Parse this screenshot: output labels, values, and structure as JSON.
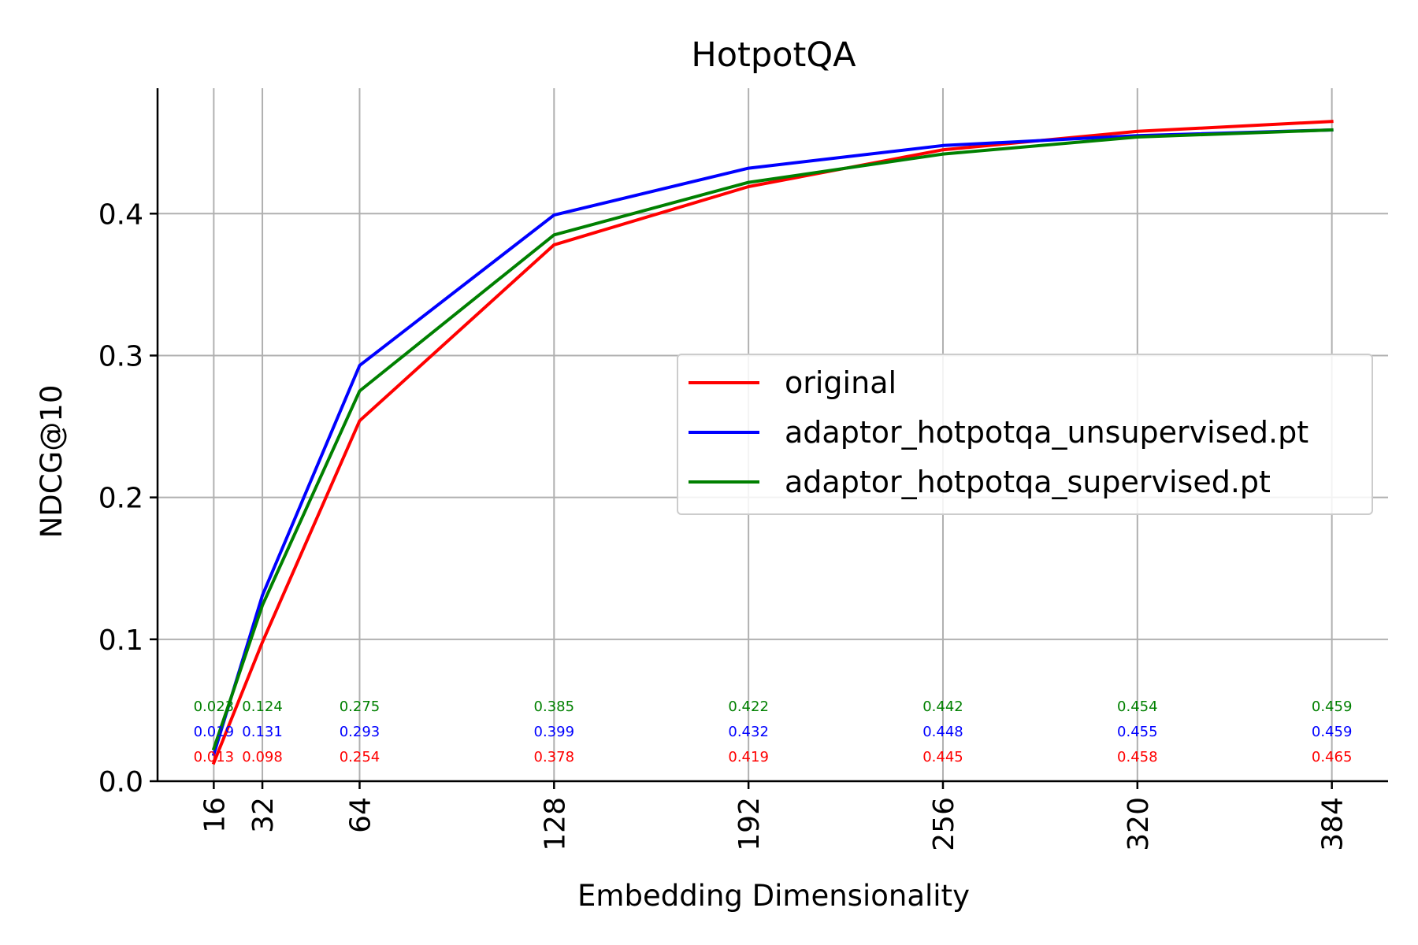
{
  "chart_data": {
    "type": "line",
    "title": "HotpotQA",
    "xlabel": "Embedding Dimensionality",
    "ylabel": "NDCG@10",
    "x": [
      16,
      32,
      64,
      128,
      192,
      256,
      320,
      384
    ],
    "x_tick_labels": [
      "16",
      "32",
      "64",
      "128",
      "192",
      "256",
      "320",
      "384"
    ],
    "xlim": [
      -2.5,
      402.5
    ],
    "ylim": [
      0,
      0.4884
    ],
    "y_ticks": [
      0.0,
      0.1,
      0.2,
      0.3,
      0.4
    ],
    "y_tick_labels": [
      "0.0",
      "0.1",
      "0.2",
      "0.3",
      "0.4"
    ],
    "grid": true,
    "legend_position": "center-right",
    "series": [
      {
        "name": "original",
        "color": "#ff0000",
        "values": [
          0.013,
          0.098,
          0.254,
          0.378,
          0.419,
          0.445,
          0.458,
          0.465
        ],
        "labels": [
          "0.013",
          "0.098",
          "0.254",
          "0.378",
          "0.419",
          "0.445",
          "0.458",
          "0.465"
        ]
      },
      {
        "name": "adaptor_hotpotqa_unsupervised.pt",
        "color": "#0000ff",
        "values": [
          0.019,
          0.131,
          0.293,
          0.399,
          0.432,
          0.448,
          0.455,
          0.459
        ],
        "labels": [
          "0.019",
          "0.131",
          "0.293",
          "0.399",
          "0.432",
          "0.448",
          "0.455",
          "0.459"
        ]
      },
      {
        "name": "adaptor_hotpotqa_supervised.pt",
        "color": "#008000",
        "values": [
          0.023,
          0.124,
          0.275,
          0.385,
          0.422,
          0.442,
          0.454,
          0.459
        ],
        "labels": [
          "0.023",
          "0.124",
          "0.275",
          "0.385",
          "0.422",
          "0.442",
          "0.454",
          "0.459"
        ]
      }
    ]
  }
}
